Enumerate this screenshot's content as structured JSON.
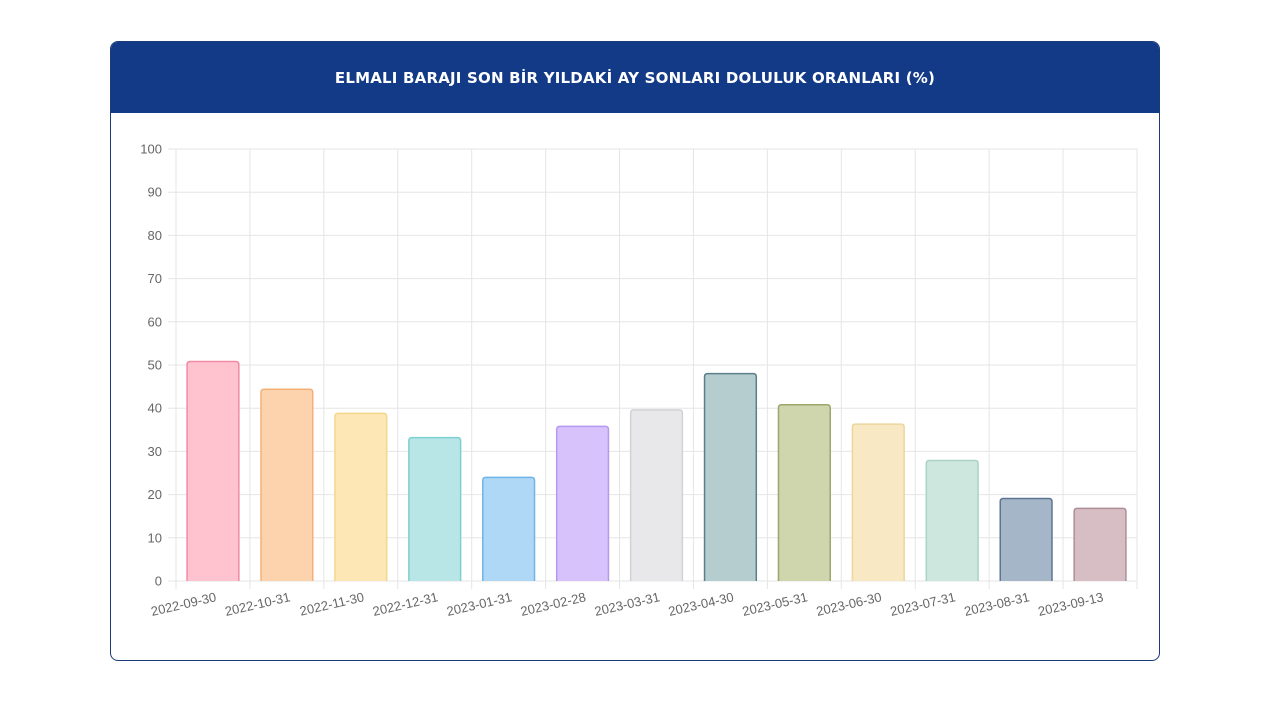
{
  "header": {
    "title": "ELMALI BARAJI SON BİR YILDAKİ AY SONLARI DOLULUK ORANLARI (%)"
  },
  "chart_data": {
    "type": "bar",
    "title": "ELMALI BARAJI SON BİR YILDAKİ AY SONLARI DOLULUK ORANLARI (%)",
    "categories": [
      "2022-09-30",
      "2022-10-31",
      "2022-11-30",
      "2022-12-31",
      "2023-01-31",
      "2023-02-28",
      "2023-03-31",
      "2023-04-30",
      "2023-05-31",
      "2023-06-30",
      "2023-07-31",
      "2023-08-31",
      "2023-09-13"
    ],
    "values": [
      50.8,
      44.4,
      38.8,
      33.2,
      24.0,
      35.8,
      39.6,
      48.0,
      40.8,
      36.3,
      27.9,
      19.1,
      16.8
    ],
    "ylim": [
      0,
      100
    ],
    "yticks": [
      0,
      10,
      20,
      30,
      40,
      50,
      60,
      70,
      80,
      90,
      100
    ],
    "grid": true,
    "legend": "none",
    "colors": {
      "fills": [
        "#ffc3d0",
        "#fdd3ad",
        "#fde7b5",
        "#b8e6e6",
        "#aed8f6",
        "#d7c2fc",
        "#e8e8ea",
        "#b6cdd0",
        "#cfd6ad",
        "#f8e8c4",
        "#cde7df",
        "#a6b6c9",
        "#d6bec4"
      ],
      "strokes": [
        "#f08ba3",
        "#f5b07a",
        "#f2d68c",
        "#7ecfcf",
        "#6db5e8",
        "#b599f1",
        "#d2d2d5",
        "#5b7f88",
        "#9ba66a",
        "#ecd69c",
        "#a9d2c5",
        "#5e7591",
        "#ae8e98"
      ],
      "grid": "#e6e6e6",
      "axis_text": "#666666",
      "header_bg": "#123a86",
      "border": "#1b3a7a"
    }
  }
}
